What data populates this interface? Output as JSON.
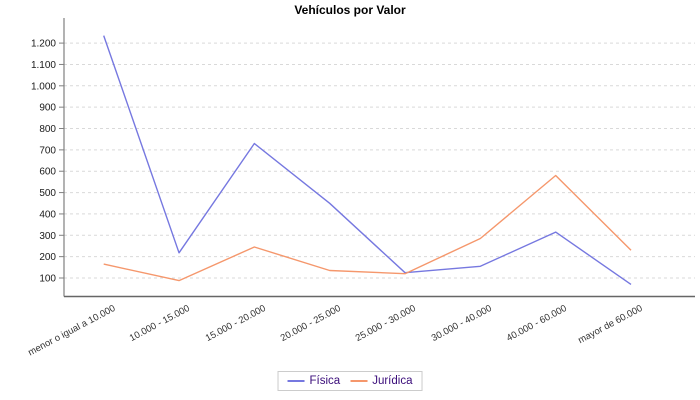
{
  "chart_data": {
    "type": "line",
    "title": "Vehículos por Valor",
    "categories": [
      "menor o igual a 10.000",
      "10.000 - 15.000",
      "15.000 - 20.000",
      "20.000 - 25.000",
      "25.000 - 30.000",
      "30.000 - 40.000",
      "40.000 - 60.000",
      "mayor de 60.000"
    ],
    "series": [
      {
        "name": "Física",
        "color": "#7678E0",
        "values": [
          1235,
          218,
          730,
          450,
          125,
          155,
          315,
          70
        ]
      },
      {
        "name": "Jurídica",
        "color": "#F5976C",
        "values": [
          165,
          88,
          245,
          135,
          120,
          285,
          580,
          230
        ]
      }
    ],
    "y_axis": {
      "min": 13,
      "max": 1310,
      "tick_step": 100,
      "ticks": [
        {
          "value": 100,
          "label": "100"
        },
        {
          "value": 200,
          "label": "200"
        },
        {
          "value": 300,
          "label": "300"
        },
        {
          "value": 400,
          "label": "400"
        },
        {
          "value": 500,
          "label": "500"
        },
        {
          "value": 600,
          "label": "600"
        },
        {
          "value": 700,
          "label": "700"
        },
        {
          "value": 800,
          "label": "800"
        },
        {
          "value": 900,
          "label": "900"
        },
        {
          "value": 1000,
          "label": "1.000"
        },
        {
          "value": 1100,
          "label": "1.100"
        },
        {
          "value": 1200,
          "label": "1.200"
        }
      ]
    },
    "x_axis": {
      "label_rotation_deg": -28
    },
    "legend": {
      "position": "bottom-center"
    },
    "grid": "horizontal-dashed",
    "colors": {
      "background": "#FFFFFF",
      "grid": "#D9D9D9",
      "axis": "#808080",
      "tick_text": "#1a1a1a",
      "legend_text": "#3A0C7A",
      "legend_border": "#CCCCCC"
    }
  }
}
